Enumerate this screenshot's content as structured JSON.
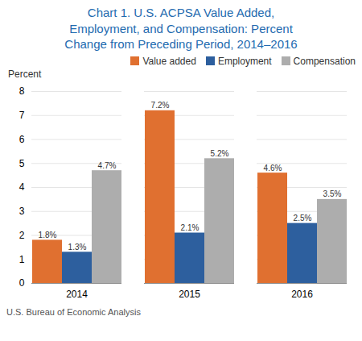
{
  "chart_data": {
    "type": "bar",
    "title": "Chart 1. U.S. ACPSA Value Added,\nEmployment, and Compensation: Percent\nChange from Preceding Period, 2014–2016",
    "y_label": "Percent",
    "caption": "U.S. Bureau of Economic Analysis",
    "categories": [
      "2014",
      "2015",
      "2016"
    ],
    "series": [
      {
        "name": "Value added",
        "color": "#E07030",
        "values": [
          1.8,
          7.2,
          4.6
        ],
        "value_labels": [
          "1.8%",
          "7.2%",
          "4.6%"
        ]
      },
      {
        "name": "Employment",
        "color": "#2D5F9E",
        "values": [
          1.3,
          2.1,
          2.5
        ],
        "value_labels": [
          "1.3%",
          "2.1%",
          "2.5%"
        ]
      },
      {
        "name": "Compensation",
        "color": "#ADADAD",
        "values": [
          4.7,
          5.2,
          3.5
        ],
        "value_labels": [
          "4.7%",
          "5.2%",
          "3.5%"
        ]
      }
    ],
    "ylim": [
      0,
      8
    ],
    "yticks": [
      0,
      1,
      2,
      3,
      4,
      5,
      6,
      7,
      8
    ],
    "grid": true,
    "legend": "upper right",
    "data_labels": true
  }
}
